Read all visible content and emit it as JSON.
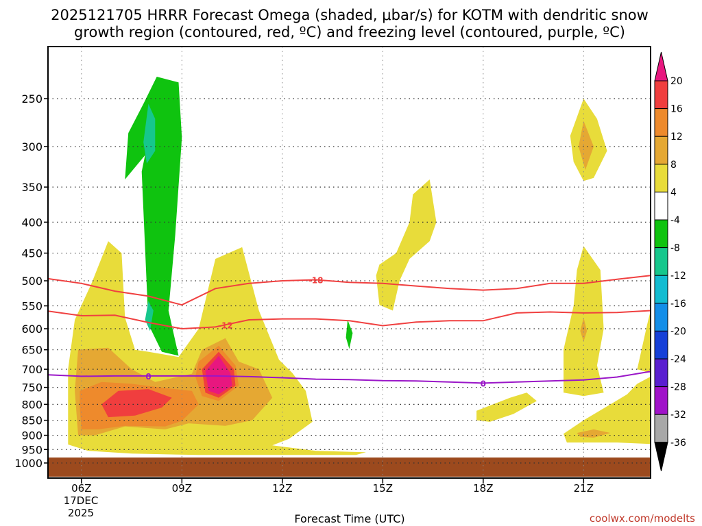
{
  "chart_data": {
    "type": "contour-timeheight",
    "title_lines": [
      "2025121705 HRRR Forecast Omega (shaded, μbar/s) for KOTM with dendritic snow",
      "growth region (contoured, red, ºC) and freezing level (contoured, purple, ºC)"
    ],
    "xlabel": "Forecast Time (UTC)",
    "x_ticks": [
      "06Z",
      "09Z",
      "12Z",
      "15Z",
      "18Z",
      "21Z"
    ],
    "x_hours": [
      6,
      9,
      12,
      15,
      18,
      21
    ],
    "x_range": [
      5,
      23
    ],
    "date_label": [
      "17DEC",
      "2025"
    ],
    "y_ticks": [
      250,
      300,
      350,
      400,
      450,
      500,
      550,
      600,
      650,
      700,
      750,
      800,
      850,
      900,
      950,
      1000
    ],
    "colorbar": {
      "labels": [
        "20",
        "16",
        "12",
        "8",
        "4",
        "-4",
        "-8",
        "-12",
        "-16",
        "-20",
        "-24",
        "-28",
        "-32",
        "-36"
      ],
      "colors": [
        "#e8177f",
        "#f03e3e",
        "#ee8a2c",
        "#e5a833",
        "#e8dc3a",
        "#ffffff",
        "#0fc30f",
        "#16c78c",
        "#12bcd1",
        "#138ee8",
        "#1640d8",
        "#5a1fd0",
        "#a012c9",
        "#a8a8a8"
      ]
    },
    "contours": [
      {
        "name": "dendritic-top",
        "label": "-18",
        "color": "#f04040",
        "points": [
          [
            5,
            496
          ],
          [
            6,
            505
          ],
          [
            7,
            520
          ],
          [
            8,
            530
          ],
          [
            9,
            548
          ],
          [
            10,
            515
          ],
          [
            11,
            505
          ],
          [
            12,
            500
          ],
          [
            13,
            498
          ],
          [
            14,
            503
          ],
          [
            15,
            505
          ],
          [
            16,
            510
          ],
          [
            17,
            515
          ],
          [
            18,
            518
          ],
          [
            19,
            515
          ],
          [
            20,
            505
          ],
          [
            21,
            505
          ],
          [
            22,
            497
          ],
          [
            23,
            490
          ]
        ]
      },
      {
        "name": "dendritic-bottom",
        "label": "-12",
        "color": "#f04040",
        "points": [
          [
            5,
            561
          ],
          [
            6,
            571
          ],
          [
            7,
            570
          ],
          [
            8,
            586
          ],
          [
            9,
            600
          ],
          [
            10,
            596
          ],
          [
            11,
            580
          ],
          [
            12,
            578
          ],
          [
            13,
            578
          ],
          [
            14,
            582
          ],
          [
            15,
            593
          ],
          [
            16,
            585
          ],
          [
            17,
            582
          ],
          [
            18,
            582
          ],
          [
            19,
            565
          ],
          [
            20,
            563
          ],
          [
            21,
            565
          ],
          [
            22,
            564
          ],
          [
            23,
            560
          ]
        ]
      },
      {
        "name": "freezing-level",
        "label": "0",
        "color": "#9a16c8",
        "points": [
          [
            5,
            715
          ],
          [
            6,
            719
          ],
          [
            7,
            718
          ],
          [
            8,
            718
          ],
          [
            9,
            718
          ],
          [
            10,
            718
          ],
          [
            11,
            720
          ],
          [
            12,
            723
          ],
          [
            13,
            727
          ],
          [
            14,
            728
          ],
          [
            15,
            731
          ],
          [
            16,
            732
          ],
          [
            17,
            735
          ],
          [
            18,
            738
          ],
          [
            19,
            735
          ],
          [
            20,
            732
          ],
          [
            21,
            729
          ],
          [
            22,
            721
          ],
          [
            23,
            706
          ]
        ]
      }
    ],
    "shaded_regions": [
      {
        "name": "green-upper",
        "value_band": "-8",
        "points": [
          [
            8.25,
            230
          ],
          [
            8.9,
            235
          ],
          [
            9,
            290
          ],
          [
            8.8,
            420
          ],
          [
            8.6,
            560
          ],
          [
            8.9,
            665
          ],
          [
            8.4,
            655
          ],
          [
            8,
            590
          ],
          [
            7.8,
            330
          ],
          [
            7.9,
            310
          ],
          [
            7.3,
            340
          ],
          [
            7.4,
            285
          ],
          [
            7.85,
            255
          ],
          [
            8.25,
            230
          ]
        ]
      },
      {
        "name": "teal-upper",
        "value_band": "-12",
        "points": [
          [
            8.0,
            255
          ],
          [
            8.2,
            270
          ],
          [
            8.2,
            305
          ],
          [
            7.95,
            320
          ],
          [
            7.85,
            295
          ],
          [
            8.0,
            255
          ]
        ]
      },
      {
        "name": "teal-lower",
        "value_band": "-12",
        "points": [
          [
            8.0,
            540
          ],
          [
            8.15,
            560
          ],
          [
            8.05,
            605
          ],
          [
            7.9,
            580
          ],
          [
            8.0,
            540
          ]
        ]
      },
      {
        "name": "green-small",
        "value_band": "-8",
        "points": [
          [
            13.95,
            580
          ],
          [
            14.1,
            610
          ],
          [
            14.0,
            648
          ],
          [
            13.9,
            620
          ],
          [
            13.95,
            580
          ]
        ]
      },
      {
        "name": "yellow-main",
        "value_band": "4",
        "points": [
          [
            5.8,
            580
          ],
          [
            6.3,
            505
          ],
          [
            6.8,
            430
          ],
          [
            7.2,
            450
          ],
          [
            7.3,
            575
          ],
          [
            7.6,
            650
          ],
          [
            8.0,
            655
          ],
          [
            8.9,
            668
          ],
          [
            9.5,
            600
          ],
          [
            10.0,
            460
          ],
          [
            10.8,
            440
          ],
          [
            11.3,
            560
          ],
          [
            11.9,
            675
          ],
          [
            12.3,
            710
          ],
          [
            12.7,
            760
          ],
          [
            12.9,
            855
          ],
          [
            12.2,
            912
          ],
          [
            11.7,
            935
          ],
          [
            13,
            955
          ],
          [
            14.5,
            960
          ],
          [
            14.2,
            970
          ],
          [
            9.5,
            970
          ],
          [
            7.5,
            965
          ],
          [
            6.2,
            955
          ],
          [
            5.6,
            932
          ],
          [
            5.6,
            840
          ],
          [
            5.6,
            700
          ],
          [
            5.8,
            580
          ]
        ]
      },
      {
        "name": "orange-light-main",
        "value_band": "8",
        "points": [
          [
            5.9,
            650
          ],
          [
            6.8,
            645
          ],
          [
            7.5,
            700
          ],
          [
            8.2,
            735
          ],
          [
            9.3,
            712
          ],
          [
            9.6,
            650
          ],
          [
            10.3,
            622
          ],
          [
            10.7,
            680
          ],
          [
            11.3,
            700
          ],
          [
            11.7,
            780
          ],
          [
            11.1,
            850
          ],
          [
            10.3,
            868
          ],
          [
            9.2,
            860
          ],
          [
            8.5,
            880
          ],
          [
            7.3,
            870
          ],
          [
            6.4,
            900
          ],
          [
            5.9,
            900
          ],
          [
            5.8,
            760
          ],
          [
            5.9,
            650
          ]
        ]
      },
      {
        "name": "orange-main",
        "value_band": "12",
        "points": [
          [
            5.95,
            760
          ],
          [
            6.6,
            735
          ],
          [
            7.5,
            740
          ],
          [
            8.5,
            752
          ],
          [
            9.3,
            760
          ],
          [
            9.5,
            800
          ],
          [
            9.0,
            852
          ],
          [
            8.5,
            870
          ],
          [
            7.3,
            868
          ],
          [
            6.5,
            880
          ],
          [
            6.0,
            880
          ],
          [
            5.95,
            810
          ],
          [
            5.95,
            760
          ]
        ]
      },
      {
        "name": "red-main",
        "value_band": "16",
        "points": [
          [
            6.6,
            800
          ],
          [
            7.1,
            760
          ],
          [
            8.0,
            755
          ],
          [
            8.7,
            780
          ],
          [
            8.4,
            810
          ],
          [
            7.6,
            835
          ],
          [
            6.8,
            840
          ],
          [
            6.6,
            800
          ]
        ]
      },
      {
        "name": "orange-peak",
        "value_band": "12",
        "points": [
          [
            9.5,
            680
          ],
          [
            10.1,
            640
          ],
          [
            10.6,
            690
          ],
          [
            10.7,
            745
          ],
          [
            10.1,
            790
          ],
          [
            9.6,
            775
          ],
          [
            9.4,
            720
          ],
          [
            9.5,
            680
          ]
        ]
      },
      {
        "name": "red-peak",
        "value_band": "16",
        "points": [
          [
            9.6,
            700
          ],
          [
            10.1,
            655
          ],
          [
            10.55,
            700
          ],
          [
            10.6,
            745
          ],
          [
            10.1,
            780
          ],
          [
            9.7,
            765
          ],
          [
            9.6,
            700
          ]
        ]
      },
      {
        "name": "magenta-peak",
        "value_band": "20",
        "points": [
          [
            9.7,
            705
          ],
          [
            10.1,
            665
          ],
          [
            10.45,
            710
          ],
          [
            10.5,
            745
          ],
          [
            10.1,
            770
          ],
          [
            9.8,
            760
          ],
          [
            9.7,
            705
          ]
        ]
      },
      {
        "name": "yellow-15z",
        "value_band": "4",
        "points": [
          [
            14.8,
            490
          ],
          [
            14.9,
            470
          ],
          [
            15.4,
            450
          ],
          [
            15.8,
            400
          ],
          [
            15.9,
            360
          ],
          [
            16.4,
            340
          ],
          [
            16.6,
            400
          ],
          [
            16.4,
            430
          ],
          [
            15.8,
            460
          ],
          [
            15.5,
            500
          ],
          [
            15.3,
            560
          ],
          [
            14.9,
            548
          ],
          [
            14.8,
            490
          ]
        ]
      },
      {
        "name": "yellow-18z",
        "value_band": "4",
        "points": [
          [
            17.8,
            820
          ],
          [
            18.8,
            780
          ],
          [
            19.3,
            765
          ],
          [
            19.6,
            790
          ],
          [
            18.9,
            830
          ],
          [
            18.2,
            855
          ],
          [
            17.8,
            850
          ],
          [
            17.8,
            820
          ]
        ]
      },
      {
        "name": "yellow-21z-top",
        "value_band": "4",
        "points": [
          [
            20.6,
            288
          ],
          [
            21.0,
            250
          ],
          [
            21.4,
            270
          ],
          [
            21.7,
            305
          ],
          [
            21.3,
            338
          ],
          [
            21.0,
            342
          ],
          [
            20.7,
            318
          ],
          [
            20.6,
            288
          ]
        ]
      },
      {
        "name": "orange-21z-top",
        "value_band": "8",
        "points": [
          [
            21.0,
            272
          ],
          [
            21.3,
            300
          ],
          [
            21.05,
            328
          ],
          [
            20.85,
            300
          ],
          [
            21.0,
            272
          ]
        ]
      },
      {
        "name": "yellow-21z-mid",
        "value_band": "4",
        "points": [
          [
            20.8,
            480
          ],
          [
            21.0,
            438
          ],
          [
            21.5,
            480
          ],
          [
            21.6,
            600
          ],
          [
            21.4,
            690
          ],
          [
            21.6,
            765
          ],
          [
            21.0,
            775
          ],
          [
            20.4,
            765
          ],
          [
            20.4,
            650
          ],
          [
            20.7,
            550
          ],
          [
            20.8,
            480
          ]
        ]
      },
      {
        "name": "orange-21z-mid",
        "value_band": "8",
        "points": [
          [
            21.0,
            575
          ],
          [
            21.1,
            605
          ],
          [
            21.0,
            630
          ],
          [
            20.9,
            605
          ],
          [
            21.0,
            575
          ]
        ]
      },
      {
        "name": "yellow-21z-low",
        "value_band": "4",
        "points": [
          [
            20.4,
            895
          ],
          [
            21.0,
            850
          ],
          [
            21.8,
            800
          ],
          [
            22.3,
            770
          ],
          [
            22.6,
            740
          ],
          [
            23,
            720
          ],
          [
            23,
            930
          ],
          [
            22.0,
            925
          ],
          [
            21.2,
            925
          ],
          [
            20.5,
            925
          ],
          [
            20.4,
            895
          ]
        ]
      },
      {
        "name": "orange-21z-low",
        "value_band": "8",
        "points": [
          [
            20.8,
            892
          ],
          [
            21.3,
            880
          ],
          [
            21.8,
            892
          ],
          [
            21.3,
            908
          ],
          [
            20.9,
            905
          ],
          [
            20.8,
            892
          ]
        ]
      },
      {
        "name": "yellow-right-edge",
        "value_band": "4",
        "points": [
          [
            22.6,
            700
          ],
          [
            22.9,
            590
          ],
          [
            23,
            560
          ],
          [
            23,
            710
          ],
          [
            22.6,
            700
          ]
        ]
      }
    ]
  },
  "credit": "coolwx.com/modelts"
}
